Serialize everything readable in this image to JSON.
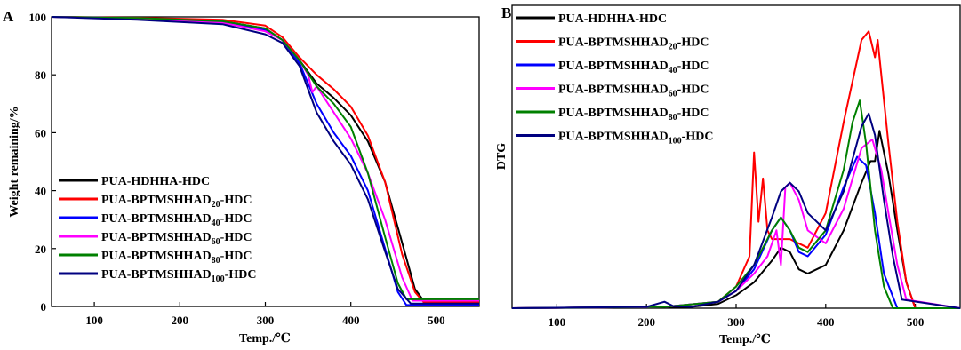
{
  "panels": {
    "a": {
      "label": "A"
    },
    "b": {
      "label": "B"
    }
  },
  "series_styles": [
    {
      "name": "PUA-HDHHA-HDC",
      "name_main": "PUA-HDHHA-HDC",
      "name_sub": "",
      "name_tail": "",
      "color": "#000000"
    },
    {
      "name": "PUA-BPTMSHHAD20-HDC",
      "name_main": "PUA-BPTMSHHAD",
      "name_sub": "20",
      "name_tail": "-HDC",
      "color": "#ff0000"
    },
    {
      "name": "PUA-BPTMSHHAD40-HDC",
      "name_main": "PUA-BPTMSHHAD",
      "name_sub": "40",
      "name_tail": "-HDC",
      "color": "#0000ff"
    },
    {
      "name": "PUA-BPTMSHHAD60-HDC",
      "name_main": "PUA-BPTMSHHAD",
      "name_sub": "60",
      "name_tail": "-HDC",
      "color": "#ff00ff"
    },
    {
      "name": "PUA-BPTMSHHAD80-HDC",
      "name_main": "PUA-BPTMSHHAD",
      "name_sub": "80",
      "name_tail": "-HDC",
      "color": "#008000"
    },
    {
      "name": "PUA-BPTMSHHAD100-HDC",
      "name_main": "PUA-BPTMSHHAD",
      "name_sub": "100",
      "name_tail": "-HDC",
      "color": "#000080"
    }
  ],
  "chart_data": [
    {
      "type": "line",
      "panel": "A",
      "xlabel": "Temp./℃",
      "ylabel": "Weight remaining/%",
      "xlim": [
        50,
        550
      ],
      "ylim": [
        0,
        100
      ],
      "xticks": [
        100,
        200,
        300,
        400,
        500
      ],
      "yticks": [
        0,
        20,
        40,
        60,
        80,
        100
      ],
      "legend": "bottom-left",
      "series": [
        {
          "name": "PUA-HDHHA-HDC",
          "x": [
            50,
            150,
            250,
            300,
            320,
            340,
            360,
            380,
            400,
            420,
            440,
            460,
            475,
            485,
            550
          ],
          "y": [
            100,
            99.6,
            98.5,
            96,
            92,
            85,
            77,
            72,
            66,
            57,
            43,
            22,
            6,
            2,
            2
          ]
        },
        {
          "name": "PUA-BPTMSHHAD20-HDC",
          "x": [
            50,
            150,
            250,
            300,
            320,
            340,
            360,
            380,
            400,
            420,
            440,
            460,
            475,
            485,
            550
          ],
          "y": [
            100,
            99.7,
            99,
            97,
            93,
            86,
            80,
            75,
            69,
            59,
            43,
            18,
            5,
            1.5,
            1.5
          ]
        },
        {
          "name": "PUA-BPTMSHHAD40-HDC",
          "x": [
            50,
            150,
            250,
            300,
            320,
            340,
            360,
            380,
            400,
            420,
            440,
            455,
            465,
            550
          ],
          "y": [
            100,
            99.5,
            98,
            95.5,
            92,
            84,
            70,
            60,
            52,
            40,
            20,
            5,
            0.5,
            0.5
          ]
        },
        {
          "name": "PUA-BPTMSHHAD60-HDC",
          "x": [
            50,
            150,
            250,
            300,
            320,
            340,
            350,
            355,
            360,
            380,
            400,
            420,
            440,
            460,
            472,
            550
          ],
          "y": [
            100,
            99.5,
            98,
            95,
            92,
            85,
            80,
            74,
            76,
            67,
            58,
            46,
            30,
            10,
            2,
            2
          ]
        },
        {
          "name": "PUA-BPTMSHHAD80-HDC",
          "x": [
            50,
            150,
            250,
            300,
            320,
            340,
            360,
            380,
            400,
            420,
            440,
            455,
            465,
            550
          ],
          "y": [
            100,
            99.6,
            98.5,
            96,
            92,
            85,
            76,
            70,
            62,
            46,
            24,
            8,
            2.5,
            2.5
          ]
        },
        {
          "name": "PUA-BPTMSHHAD100-HDC",
          "x": [
            50,
            150,
            250,
            300,
            320,
            340,
            360,
            380,
            400,
            420,
            440,
            455,
            470,
            550
          ],
          "y": [
            100,
            99,
            97.5,
            94,
            91,
            83,
            67,
            57,
            49,
            37,
            19,
            6,
            1,
            1
          ]
        }
      ]
    },
    {
      "type": "line",
      "panel": "B",
      "xlabel": "Temp./℃",
      "ylabel": "DTG",
      "xlim": [
        50,
        550
      ],
      "xticks": [
        100,
        200,
        300,
        400,
        500
      ],
      "yticks": [],
      "legend": "top-left",
      "series": [
        {
          "name": "PUA-HDHHA-HDC",
          "x": [
            50,
            220,
            250,
            280,
            300,
            320,
            340,
            350,
            360,
            370,
            380,
            400,
            420,
            440,
            450,
            455,
            460,
            470,
            480,
            490,
            500,
            550
          ],
          "y": [
            0,
            0.3,
            0.3,
            1,
            3,
            6,
            11,
            14,
            13,
            9,
            8,
            10,
            18,
            29,
            34,
            34,
            41,
            31,
            18,
            6,
            0,
            0
          ]
        },
        {
          "name": "PUA-BPTMSHHAD20-HDC",
          "x": [
            50,
            220,
            280,
            300,
            315,
            320,
            325,
            330,
            335,
            340,
            350,
            360,
            380,
            400,
            420,
            440,
            448,
            455,
            458,
            462,
            470,
            480,
            490,
            500,
            550
          ],
          "y": [
            0,
            0.3,
            1.5,
            5,
            12,
            36,
            20,
            30,
            18,
            16,
            16,
            16,
            14,
            22,
            43,
            62,
            64,
            58,
            62,
            54,
            38,
            20,
            6,
            0,
            0
          ]
        },
        {
          "name": "PUA-BPTMSHHAD40-HDC",
          "x": [
            50,
            220,
            280,
            300,
            320,
            340,
            350,
            360,
            370,
            380,
            400,
            420,
            435,
            445,
            455,
            465,
            480,
            550
          ],
          "y": [
            0,
            0.3,
            1.5,
            4,
            9,
            18,
            21,
            18,
            13,
            12,
            17,
            28,
            35,
            33,
            22,
            8,
            0,
            0
          ]
        },
        {
          "name": "PUA-BPTMSHHAD60-HDC",
          "x": [
            50,
            220,
            280,
            300,
            320,
            335,
            345,
            350,
            355,
            360,
            370,
            380,
            400,
            420,
            440,
            452,
            462,
            470,
            480,
            490,
            550
          ],
          "y": [
            0,
            0.3,
            1.5,
            4,
            8,
            12,
            18,
            10,
            28,
            29,
            25,
            18,
            15,
            23,
            37,
            39,
            32,
            22,
            10,
            2,
            0
          ]
        },
        {
          "name": "PUA-BPTMSHHAD80-HDC",
          "x": [
            50,
            220,
            280,
            300,
            320,
            340,
            350,
            360,
            370,
            380,
            400,
            420,
            430,
            438,
            445,
            455,
            465,
            475,
            550
          ],
          "y": [
            0,
            0.3,
            1.5,
            5,
            10,
            18,
            21,
            18,
            14,
            13,
            18,
            32,
            43,
            48,
            38,
            18,
            5,
            0,
            0
          ]
        },
        {
          "name": "PUA-BPTMSHHAD100-HDC",
          "x": [
            50,
            200,
            220,
            230,
            250,
            280,
            300,
            320,
            340,
            350,
            360,
            370,
            380,
            400,
            420,
            440,
            448,
            455,
            465,
            475,
            485,
            550
          ],
          "y": [
            0,
            0.3,
            1.5,
            0.5,
            0.3,
            1.5,
            4,
            10,
            21,
            27,
            29,
            27,
            22,
            18,
            27,
            42,
            45,
            40,
            25,
            12,
            2,
            0
          ]
        }
      ]
    }
  ]
}
